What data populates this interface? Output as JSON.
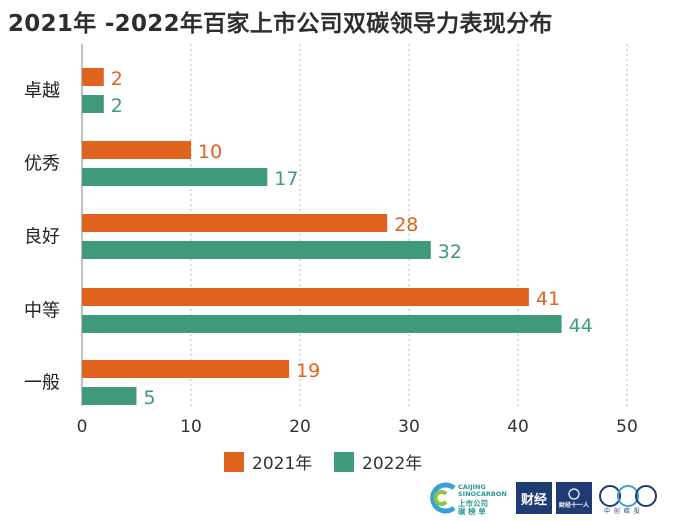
{
  "chart_data": {
    "type": "bar",
    "orientation": "horizontal",
    "title": "2021年 -2022年百家上市公司双碳领导力表现分布",
    "categories": [
      "卓越",
      "优秀",
      "良好",
      "中等",
      "一般"
    ],
    "series": [
      {
        "name": "2021年",
        "values": [
          2,
          10,
          28,
          41,
          19
        ],
        "color": "#e0631e"
      },
      {
        "name": "2022年",
        "values": [
          2,
          17,
          32,
          44,
          5
        ],
        "color": "#3f9a7d"
      }
    ],
    "xticks": [
      "0",
      "10",
      "20",
      "30",
      "40",
      "50"
    ],
    "xlim": [
      0,
      50
    ],
    "grid": "vertical dashed",
    "legend": "bottom"
  },
  "logos": {
    "caijing_line1": "CAIJING",
    "caijing_line2": "SINOCARBON",
    "caijing_cn1": "上市公司",
    "caijing_cn2": "碳 榜 单",
    "box2_text": "财经",
    "box3_text": "财经十一人",
    "circles_text": "中 创 碳 投"
  }
}
